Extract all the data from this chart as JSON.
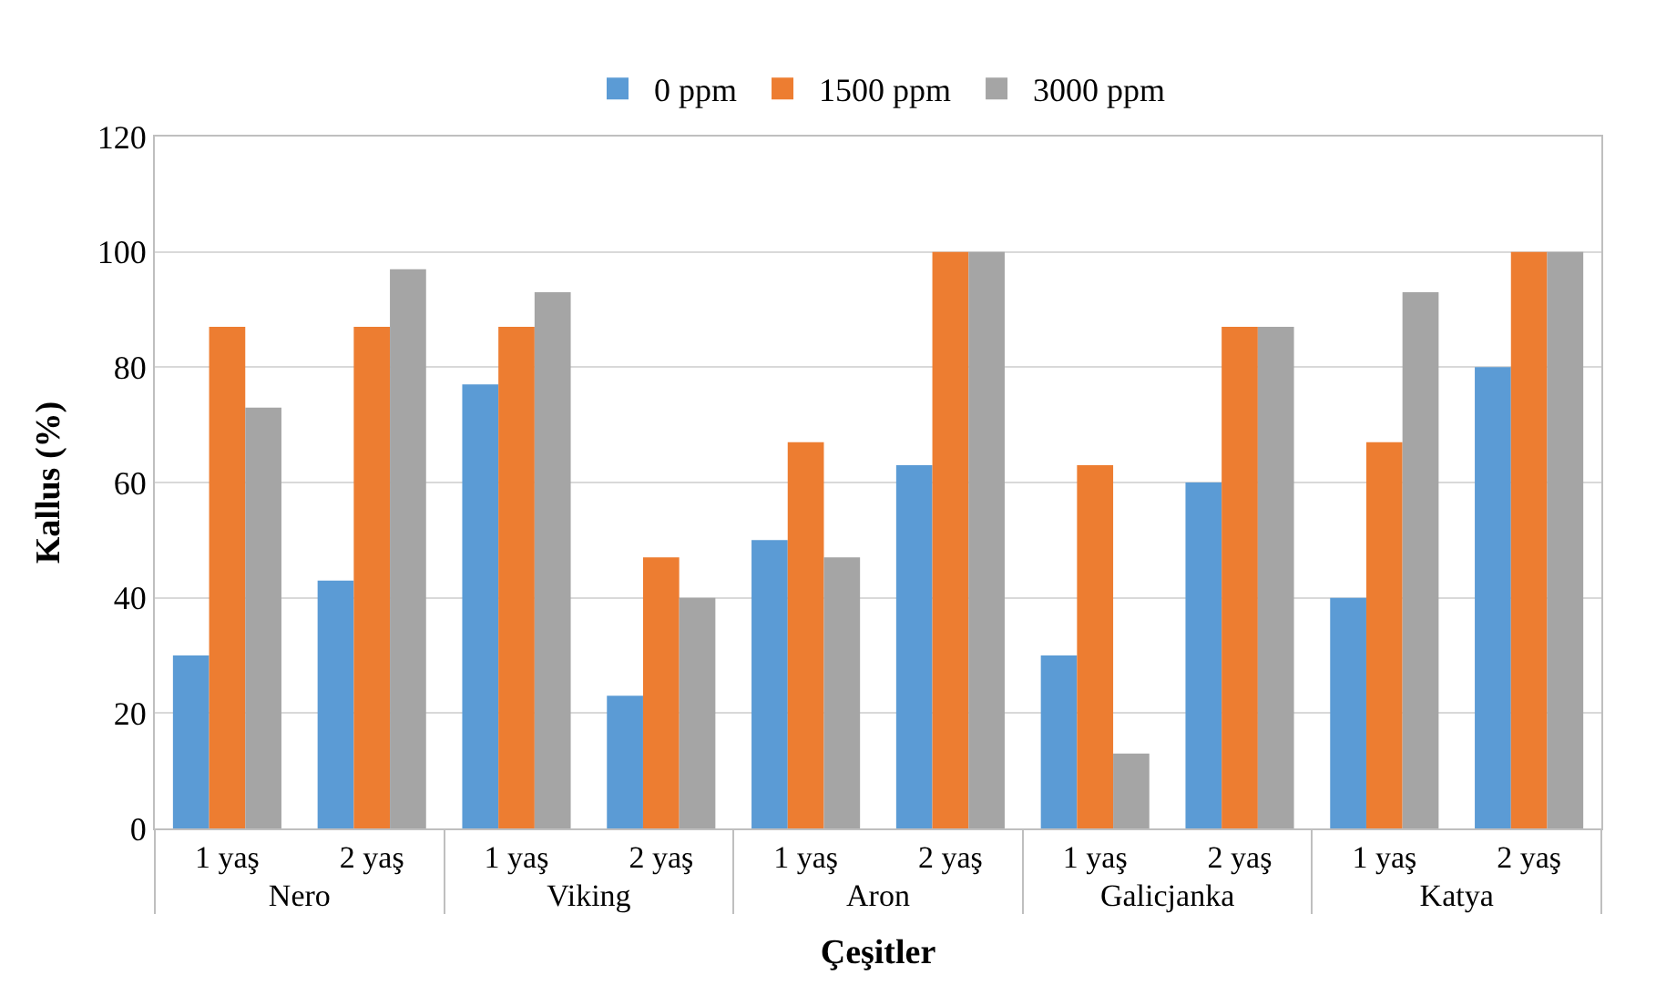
{
  "chart_data": {
    "type": "bar",
    "xlabel": "Çeşitler",
    "ylabel": "Kallus (%)",
    "categories": [
      "1 yaş",
      "2 yaş",
      "1 yaş",
      "2 yaş",
      "1 yaş",
      "2 yaş",
      "1 yaş",
      "2 yaş",
      "1 yaş",
      "2 yaş"
    ],
    "annotations": [
      "Nero",
      "Viking",
      "Aron",
      "Galicjanka",
      "Katya"
    ],
    "series": [
      {
        "name": "0 ppm",
        "color": "#5b9bd5",
        "values": [
          30,
          43,
          77,
          23,
          50,
          63,
          30,
          60,
          40,
          80
        ]
      },
      {
        "name": "1500 ppm",
        "color": "#ed7d31",
        "values": [
          87,
          87,
          87,
          47,
          67,
          100,
          63,
          87,
          67,
          100
        ]
      },
      {
        "name": "3000 ppm",
        "color": "#a5a5a5",
        "values": [
          73,
          97,
          93,
          40,
          47,
          100,
          13,
          87,
          93,
          100
        ]
      }
    ],
    "ylim": [
      0,
      120
    ],
    "yticks": [
      0,
      20,
      40,
      60,
      80,
      100,
      120
    ],
    "grid": "y",
    "legend": "top"
  }
}
